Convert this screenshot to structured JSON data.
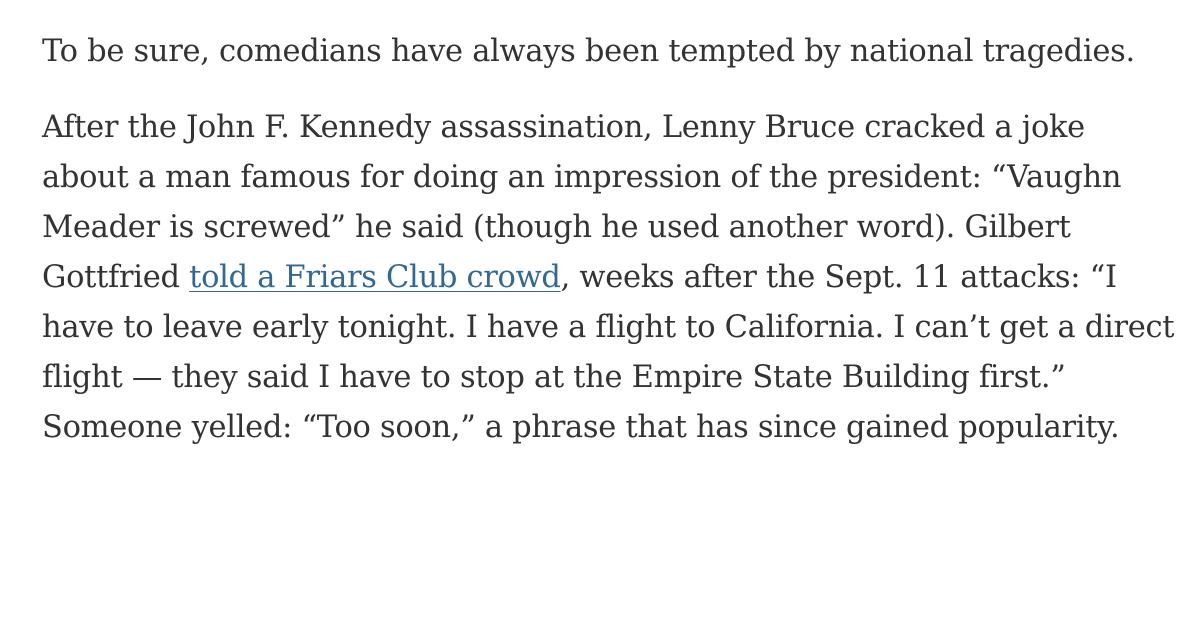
{
  "article": {
    "paragraph_1": "To be sure, comedians have always been tempted by national tragedies.",
    "paragraph_2_before_link": "After the John F. Kennedy assassination, Lenny Bruce cracked a joke about a man famous for doing an impression of the president: “Vaughn Meader is screwed” he said (though he used another word). Gilbert Gottfried ",
    "paragraph_2_link": "told a Friars Club crowd",
    "paragraph_2_after_link": ", weeks after the Sept. 11 attacks: “I have to leave early tonight. I have a flight to California. I can’t get a direct flight — they said I have to stop at the Empire State Building first.” Someone yelled: “Too soon,” a phrase that has since gained popularity.",
    "text_color": "#333333",
    "link_color": "#326891"
  }
}
